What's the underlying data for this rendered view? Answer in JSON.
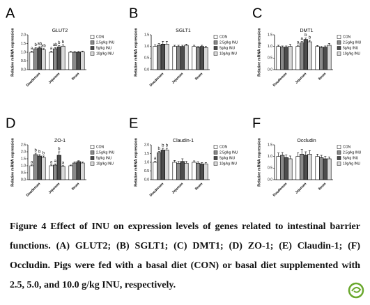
{
  "chart_data": [
    {
      "type": "bar",
      "panel": "A",
      "title": "GLUT2",
      "ylabel": "Relative mRNA expression",
      "categories": [
        "Duodenum",
        "Jejunum",
        "Ileum"
      ],
      "ylim": [
        0,
        2.0
      ],
      "yticks": [
        {
          "value": 0,
          "label": "0.0"
        },
        {
          "value": 0.5,
          "label": "0.5"
        },
        {
          "value": 1,
          "label": "1.0"
        },
        {
          "value": 1.5,
          "label": "1.5"
        },
        {
          "value": 2,
          "label": "2.0"
        }
      ],
      "series": [
        {
          "name": "CON",
          "color": "#ffffff",
          "values": [
            1.0,
            1.0,
            1.0
          ],
          "errors": [
            0.06,
            0.06,
            0.05
          ],
          "letters": [
            "a",
            "a",
            null
          ]
        },
        {
          "name": "2.5g/kg INU",
          "color": "#8a8a8a",
          "values": [
            1.2,
            1.2,
            1.0
          ],
          "errors": [
            0.06,
            0.07,
            0.04
          ],
          "letters": [
            "b",
            "ab",
            null
          ]
        },
        {
          "name": "5g/kg INU",
          "color": "#4d4d4d",
          "values": [
            1.25,
            1.3,
            1.0
          ],
          "errors": [
            0.07,
            0.08,
            0.05
          ],
          "letters": [
            "ab",
            "b",
            null
          ]
        },
        {
          "name": "10g/kg INU",
          "color": "#d9d9d9",
          "values": [
            1.15,
            1.35,
            1.02
          ],
          "errors": [
            0.06,
            0.08,
            0.05
          ],
          "letters": [
            "ab",
            "b",
            null
          ]
        }
      ]
    },
    {
      "type": "bar",
      "panel": "B",
      "title": "SGLT1",
      "ylabel": "Relative mRNA expression",
      "categories": [
        "Duodenum",
        "Jejunum",
        "Ileum"
      ],
      "ylim": [
        0,
        1.5
      ],
      "yticks": [
        {
          "value": 0,
          "label": "0.0"
        },
        {
          "value": 0.5,
          "label": "0.5"
        },
        {
          "value": 1,
          "label": "1.0"
        },
        {
          "value": 1.5,
          "label": "1.5"
        }
      ],
      "series": [
        {
          "name": "CON",
          "color": "#ffffff",
          "values": [
            1.0,
            1.0,
            1.0
          ],
          "errors": [
            0.07,
            0.05,
            0.05
          ],
          "letters": [
            null,
            null,
            null
          ]
        },
        {
          "name": "2.5g/kg INU",
          "color": "#8a8a8a",
          "values": [
            1.05,
            1.0,
            0.95
          ],
          "errors": [
            0.07,
            0.05,
            0.05
          ],
          "letters": [
            null,
            null,
            null
          ]
        },
        {
          "name": "5g/kg INU",
          "color": "#4d4d4d",
          "values": [
            1.1,
            1.0,
            1.0
          ],
          "errors": [
            0.12,
            0.05,
            0.05
          ],
          "letters": [
            null,
            null,
            null
          ]
        },
        {
          "name": "10g/kg INU",
          "color": "#d9d9d9",
          "values": [
            1.1,
            1.05,
            0.95
          ],
          "errors": [
            0.12,
            0.05,
            0.05
          ],
          "letters": [
            null,
            null,
            null
          ]
        }
      ]
    },
    {
      "type": "bar",
      "panel": "C",
      "title": "DMT1",
      "ylabel": "Relative mRNA expression",
      "categories": [
        "Duodenum",
        "Jejunum",
        "Ileum"
      ],
      "ylim": [
        0,
        1.5
      ],
      "yticks": [
        {
          "value": 0,
          "label": "0.0"
        },
        {
          "value": 0.5,
          "label": "0.5"
        },
        {
          "value": 1,
          "label": "1.0"
        },
        {
          "value": 1.5,
          "label": "1.5"
        }
      ],
      "series": [
        {
          "name": "CON",
          "color": "#ffffff",
          "values": [
            1.0,
            1.0,
            1.0
          ],
          "errors": [
            0.05,
            0.05,
            0.04
          ],
          "letters": [
            null,
            "a",
            null
          ]
        },
        {
          "name": "2.5g/kg INU",
          "color": "#8a8a8a",
          "values": [
            0.97,
            1.15,
            0.95
          ],
          "errors": [
            0.05,
            0.06,
            0.05
          ],
          "letters": [
            null,
            "a",
            null
          ]
        },
        {
          "name": "5g/kg INU",
          "color": "#4d4d4d",
          "values": [
            0.97,
            1.3,
            0.97
          ],
          "errors": [
            0.05,
            0.06,
            0.05
          ],
          "letters": [
            null,
            "b",
            null
          ]
        },
        {
          "name": "10g/kg INU",
          "color": "#d9d9d9",
          "values": [
            1.0,
            1.2,
            1.05
          ],
          "errors": [
            0.09,
            0.06,
            0.08
          ],
          "letters": [
            null,
            "b",
            null
          ]
        }
      ]
    },
    {
      "type": "bar",
      "panel": "D",
      "title": "ZO-1",
      "ylabel": "Relative mRNA expression",
      "categories": [
        "Duodenum",
        "Jejunum",
        "Ileum"
      ],
      "ylim": [
        0,
        2.5
      ],
      "yticks": [
        {
          "value": 0,
          "label": "0.0"
        },
        {
          "value": 0.5,
          "label": "0.5"
        },
        {
          "value": 1,
          "label": "1.0"
        },
        {
          "value": 1.5,
          "label": "1.5"
        },
        {
          "value": 2,
          "label": "2.0"
        },
        {
          "value": 2.5,
          "label": "2.5"
        }
      ],
      "series": [
        {
          "name": "CON",
          "color": "#ffffff",
          "values": [
            1.0,
            1.0,
            1.0
          ],
          "errors": [
            0.06,
            0.06,
            0.05
          ],
          "letters": [
            "a",
            "a",
            null
          ]
        },
        {
          "name": "2.5g/kg INU",
          "color": "#8a8a8a",
          "values": [
            1.8,
            1.05,
            1.2
          ],
          "errors": [
            0.1,
            0.08,
            0.06
          ],
          "letters": [
            "b",
            "a",
            null
          ]
        },
        {
          "name": "5g/kg INU",
          "color": "#4d4d4d",
          "values": [
            1.7,
            1.75,
            1.3
          ],
          "errors": [
            0.1,
            0.25,
            0.06
          ],
          "letters": [
            "b",
            "b",
            null
          ]
        },
        {
          "name": "10g/kg INU",
          "color": "#d9d9d9",
          "values": [
            1.6,
            0.95,
            1.2
          ],
          "errors": [
            0.1,
            0.06,
            0.06
          ],
          "letters": [
            "b",
            "a",
            null
          ]
        }
      ]
    },
    {
      "type": "bar",
      "panel": "E",
      "title": "Claudin-1",
      "ylabel": "Relative mRNA expression",
      "categories": [
        "Duodenum",
        "Jejunum",
        "Ileum"
      ],
      "ylim": [
        0,
        2.0
      ],
      "yticks": [
        {
          "value": 0,
          "label": "0.0"
        },
        {
          "value": 0.5,
          "label": "0.5"
        },
        {
          "value": 1,
          "label": "1.0"
        },
        {
          "value": 1.5,
          "label": "1.5"
        },
        {
          "value": 2,
          "label": "2.0"
        }
      ],
      "series": [
        {
          "name": "CON",
          "color": "#ffffff",
          "values": [
            1.0,
            1.0,
            1.0
          ],
          "errors": [
            0.06,
            0.1,
            0.08
          ],
          "letters": [
            "a",
            null,
            null
          ]
        },
        {
          "name": "2.5g/kg INU",
          "color": "#8a8a8a",
          "values": [
            1.55,
            0.95,
            0.95
          ],
          "errors": [
            0.08,
            0.1,
            0.08
          ],
          "letters": [
            "b",
            null,
            null
          ]
        },
        {
          "name": "5g/kg INU",
          "color": "#4d4d4d",
          "values": [
            1.7,
            1.05,
            0.9
          ],
          "errors": [
            0.1,
            0.15,
            0.08
          ],
          "letters": [
            "b",
            null,
            null
          ]
        },
        {
          "name": "10g/kg INU",
          "color": "#d9d9d9",
          "values": [
            1.7,
            0.95,
            0.9
          ],
          "errors": [
            0.1,
            0.1,
            0.08
          ],
          "letters": [
            "b",
            null,
            null
          ]
        }
      ]
    },
    {
      "type": "bar",
      "panel": "F",
      "title": "Occludin",
      "ylabel": "Relative mRNA expression",
      "categories": [
        "Duodenum",
        "Jejunum",
        "Ileum"
      ],
      "ylim": [
        0,
        1.5
      ],
      "yticks": [
        {
          "value": 0,
          "label": "0.0"
        },
        {
          "value": 0.5,
          "label": "0.5"
        },
        {
          "value": 1,
          "label": "1.0"
        },
        {
          "value": 1.5,
          "label": "1.5"
        }
      ],
      "series": [
        {
          "name": "CON",
          "color": "#ffffff",
          "values": [
            1.0,
            1.0,
            1.0
          ],
          "errors": [
            0.15,
            0.15,
            0.1
          ],
          "letters": [
            null,
            null,
            null
          ]
        },
        {
          "name": "2.5g/kg INU",
          "color": "#8a8a8a",
          "values": [
            1.05,
            1.1,
            0.95
          ],
          "errors": [
            0.12,
            0.2,
            0.1
          ],
          "letters": [
            null,
            null,
            null
          ]
        },
        {
          "name": "5g/kg INU",
          "color": "#4d4d4d",
          "values": [
            0.95,
            1.05,
            0.9
          ],
          "errors": [
            0.12,
            0.15,
            0.1
          ],
          "letters": [
            null,
            null,
            null
          ]
        },
        {
          "name": "10g/kg INU",
          "color": "#d9d9d9",
          "values": [
            0.9,
            1.1,
            0.9
          ],
          "errors": [
            0.12,
            0.15,
            0.08
          ],
          "letters": [
            null,
            null,
            null
          ]
        }
      ]
    }
  ],
  "caption": "Figure 4 Effect of INU on expression levels of genes related to intestinal barrier functions. (A) GLUT2; (B) SGLT1; (C) DMT1; (D) ZO-1; (E) Claudin-1; (F) Occludin. Pigs were fed with a basal diet (CON) or basal diet supplemented with 2.5, 5.0, and 10.0 g/kg INU, respectively."
}
